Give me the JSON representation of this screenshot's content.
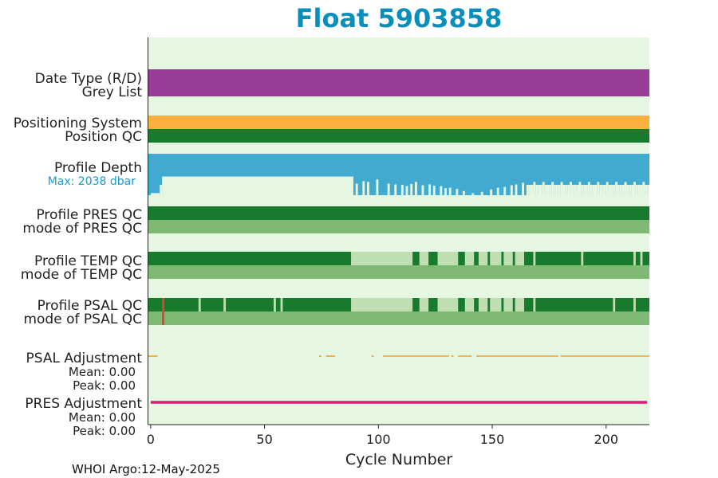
{
  "chart_data": {
    "type": "bar",
    "title": "Float 5903858",
    "xlabel": "Cycle Number",
    "xlim": [
      -1,
      219
    ],
    "xticks": [
      0,
      50,
      100,
      150,
      200
    ],
    "footer": "WHOI Argo:12-May-2025",
    "rows": [
      {
        "key": "date_type",
        "label_top": "Date Type (R/D)",
        "label_bottom": "Grey List"
      },
      {
        "key": "positioning",
        "label_top": "Positioning System",
        "label_bottom": "Position QC"
      },
      {
        "key": "profile_depth",
        "label_top": "Profile Depth",
        "label_bottom": "Max: 2038 dbar"
      },
      {
        "key": "pres_qc",
        "label_top": "Profile PRES QC",
        "label_bottom": "mode of PRES QC"
      },
      {
        "key": "temp_qc",
        "label_top": "Profile TEMP QC",
        "label_bottom": "mode of TEMP QC"
      },
      {
        "key": "psal_qc",
        "label_top": "Profile PSAL QC",
        "label_bottom": "mode of PSAL QC"
      },
      {
        "key": "psal_adj",
        "label_top": "PSAL Adjustment",
        "mean_label": "Mean: 0.00",
        "peak_label": "Peak: 0.00"
      },
      {
        "key": "pres_adj",
        "label_top": "PRES Adjustment",
        "mean_label": "Mean: 0.00",
        "peak_label": "Peak: 0.00"
      }
    ],
    "depth": {
      "max_dbar": 2038,
      "full_fraction_segments": [
        [
          0,
          4,
          0.95
        ],
        [
          4,
          5,
          0.75
        ],
        [
          5,
          89,
          0.55
        ]
      ],
      "short_profiles": [
        {
          "cycle": 1,
          "fraction": 0.95
        },
        {
          "cycle": 90,
          "fraction": 0.72
        },
        {
          "cycle": 93,
          "fraction": 0.66
        },
        {
          "cycle": 95,
          "fraction": 0.68
        },
        {
          "cycle": 99,
          "fraction": 0.62
        },
        {
          "cycle": 104,
          "fraction": 0.72
        },
        {
          "cycle": 107,
          "fraction": 0.74
        },
        {
          "cycle": 110,
          "fraction": 0.75
        },
        {
          "cycle": 112,
          "fraction": 0.78
        },
        {
          "cycle": 114,
          "fraction": 0.73
        },
        {
          "cycle": 116,
          "fraction": 0.68
        },
        {
          "cycle": 119,
          "fraction": 0.76
        },
        {
          "cycle": 122,
          "fraction": 0.74
        },
        {
          "cycle": 124,
          "fraction": 0.77
        },
        {
          "cycle": 127,
          "fraction": 0.78
        },
        {
          "cycle": 129,
          "fraction": 0.83
        },
        {
          "cycle": 131,
          "fraction": 0.82
        },
        {
          "cycle": 134,
          "fraction": 0.85
        },
        {
          "cycle": 137,
          "fraction": 0.9
        },
        {
          "cycle": 141,
          "fraction": 0.95
        },
        {
          "cycle": 145,
          "fraction": 0.92
        },
        {
          "cycle": 149,
          "fraction": 0.86
        },
        {
          "cycle": 152,
          "fraction": 0.82
        },
        {
          "cycle": 155,
          "fraction": 0.8
        },
        {
          "cycle": 158,
          "fraction": 0.76
        },
        {
          "cycle": 160,
          "fraction": 0.74
        },
        {
          "cycle": 163,
          "fraction": 0.7
        }
      ]
    },
    "temp_qc_flags": [
      {
        "start": 88,
        "end": 115,
        "flag": "probably good"
      },
      {
        "start": 118,
        "end": 122,
        "flag": "probably good"
      },
      {
        "start": 126,
        "end": 135,
        "flag": "probably good"
      },
      {
        "start": 138,
        "end": 142,
        "flag": "probably good"
      },
      {
        "start": 144,
        "end": 148,
        "flag": "probably good"
      },
      {
        "start": 149,
        "end": 154,
        "flag": "probably good"
      },
      {
        "start": 155,
        "end": 159,
        "flag": "probably good"
      },
      {
        "start": 160,
        "end": 164,
        "flag": "probably good"
      },
      {
        "start": 168,
        "end": 169,
        "flag": "probably good"
      },
      {
        "start": 189,
        "end": 190,
        "flag": "probably good"
      },
      {
        "start": 212,
        "end": 213,
        "flag": "probably good"
      },
      {
        "start": 215,
        "end": 216,
        "flag": "probably good"
      }
    ],
    "psal_qc_flags": [
      {
        "start": 5,
        "end": 6,
        "flag": "bad"
      },
      {
        "start": 21,
        "end": 22,
        "flag": "probably good"
      },
      {
        "start": 32,
        "end": 33,
        "flag": "probably good"
      },
      {
        "start": 54,
        "end": 55,
        "flag": "probably good"
      },
      {
        "start": 57,
        "end": 58,
        "flag": "probably good"
      },
      {
        "start": 88,
        "end": 115,
        "flag": "probably good"
      },
      {
        "start": 118,
        "end": 122,
        "flag": "probably good"
      },
      {
        "start": 126,
        "end": 135,
        "flag": "probably good"
      },
      {
        "start": 138,
        "end": 142,
        "flag": "probably good"
      },
      {
        "start": 144,
        "end": 148,
        "flag": "probably good"
      },
      {
        "start": 149,
        "end": 154,
        "flag": "probably good"
      },
      {
        "start": 155,
        "end": 159,
        "flag": "probably good"
      },
      {
        "start": 160,
        "end": 164,
        "flag": "probably good"
      },
      {
        "start": 168,
        "end": 169,
        "flag": "probably good"
      },
      {
        "start": 203,
        "end": 204,
        "flag": "probably good"
      },
      {
        "start": 212,
        "end": 213,
        "flag": "probably good"
      }
    ],
    "psal_adjustment_segments": [
      [
        -1,
        3
      ],
      [
        74,
        75
      ],
      [
        77,
        81
      ],
      [
        97,
        98
      ],
      [
        102,
        131
      ],
      [
        132,
        133
      ],
      [
        135,
        141
      ],
      [
        143,
        179
      ],
      [
        180,
        219
      ]
    ],
    "pres_adjustment_range": [
      0,
      218
    ],
    "colors": {
      "background": "#e5f7e1",
      "date_type": "#983c98",
      "positioning": "#fcb040",
      "good_qc": "#177a2d",
      "mode_qc": "#7db973",
      "probably_good_qc": "#bfdfb2",
      "bad_qc": "#e0403a",
      "depth": "#41aad1",
      "psal_adj": "#f0a22b",
      "pres_adj": "#dc1878",
      "title": "#0a8fbd"
    }
  }
}
